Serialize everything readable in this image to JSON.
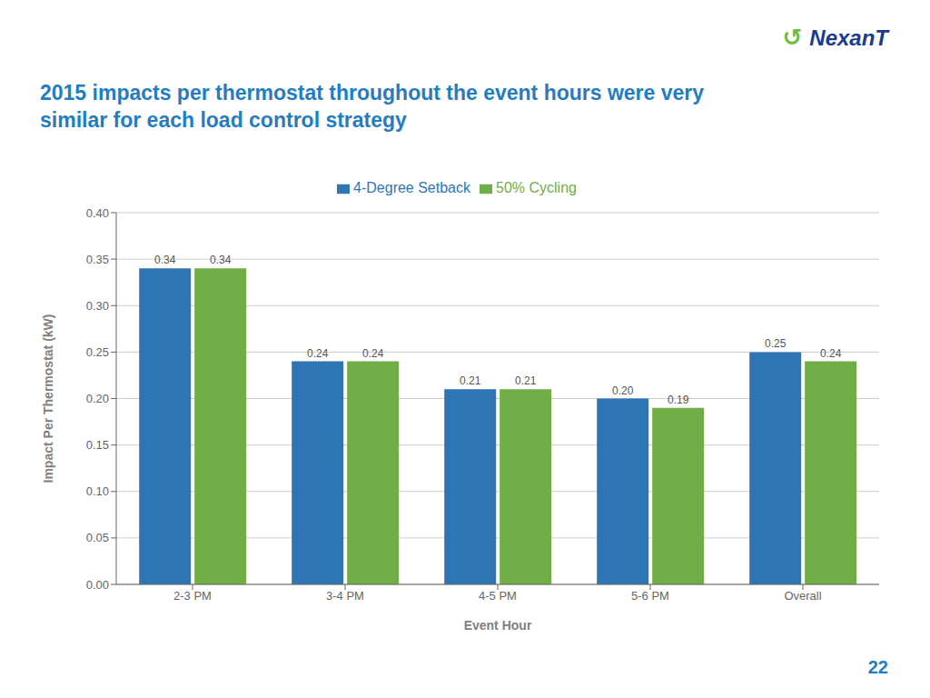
{
  "chart_data": {
    "type": "bar",
    "title": "2015 impacts per thermostat throughout the event hours were very similar for each load control strategy",
    "categories": [
      "2-3 PM",
      "3-4 PM",
      "4-5 PM",
      "5-6 PM",
      "Overall"
    ],
    "series": [
      {
        "name": "4-Degree Setback",
        "color": "#2E75B6",
        "values": [
          0.34,
          0.24,
          0.21,
          0.2,
          0.25
        ],
        "value_labels": [
          "0.34",
          "0.24",
          "0.21",
          "0.20",
          "0.25"
        ]
      },
      {
        "name": "50% Cycling",
        "color": "#70AD47",
        "values": [
          0.34,
          0.24,
          0.21,
          0.19,
          0.24
        ],
        "value_labels": [
          "0.34",
          "0.24",
          "0.21",
          "0.19",
          "0.24"
        ]
      }
    ],
    "xlabel": "Event Hour",
    "ylabel": "Impact Per Thermostat (kW)",
    "ylim": [
      0.0,
      0.4
    ],
    "yticks": [
      {
        "value": 0,
        "label": "0.00"
      },
      {
        "value": 0.05,
        "label": "0.05"
      },
      {
        "value": 0.1,
        "label": "0.10"
      },
      {
        "value": 0.15,
        "label": "0.15"
      },
      {
        "value": 0.2,
        "label": "0.20"
      },
      {
        "value": 0.25,
        "label": "0.25"
      },
      {
        "value": 0.3,
        "label": "0.30"
      },
      {
        "value": 0.35,
        "label": "0.35"
      },
      {
        "value": 0.4,
        "label": "0.40"
      }
    ],
    "grid": true,
    "legend": "top",
    "data_labels": true,
    "annotations": [
      "↺",
      "NexanT",
      "22"
    ]
  }
}
